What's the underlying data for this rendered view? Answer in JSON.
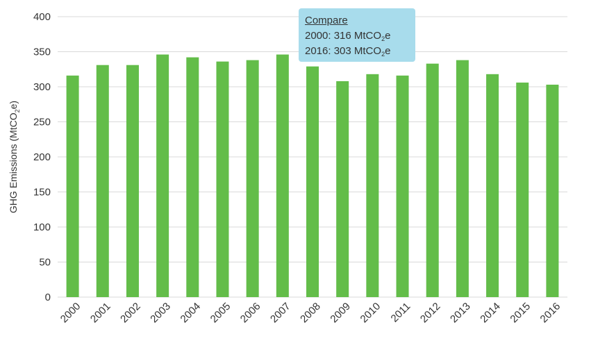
{
  "chart_data": {
    "type": "bar",
    "categories": [
      "2000",
      "2001",
      "2002",
      "2003",
      "2004",
      "2005",
      "2006",
      "2007",
      "2008",
      "2009",
      "2010",
      "2011",
      "2012",
      "2013",
      "2014",
      "2015",
      "2016"
    ],
    "values": [
      316,
      331,
      331,
      346,
      342,
      336,
      338,
      346,
      329,
      308,
      318,
      316,
      333,
      338,
      318,
      306,
      303
    ],
    "title": "",
    "xlabel": "",
    "ylabel": "GHG Emissions (MtCO2e)",
    "ylabel_parts": {
      "before": "GHG Emissions (MtCO",
      "sub": "2",
      "after": "e)"
    },
    "ylim": [
      0,
      400
    ],
    "yticks": [
      0,
      50,
      100,
      150,
      200,
      250,
      300,
      350,
      400
    ],
    "grid": true,
    "bar_color": "#63bd49",
    "grid_color": "#d9d9d9"
  },
  "callout": {
    "heading": "Compare",
    "line1": {
      "prefix": "2000: 316 MtCO",
      "sub": "2",
      "suffix": "e"
    },
    "line2": {
      "prefix": "2016: 303 MtCO",
      "sub": "2",
      "suffix": "e"
    },
    "background": "#a8dcec"
  }
}
